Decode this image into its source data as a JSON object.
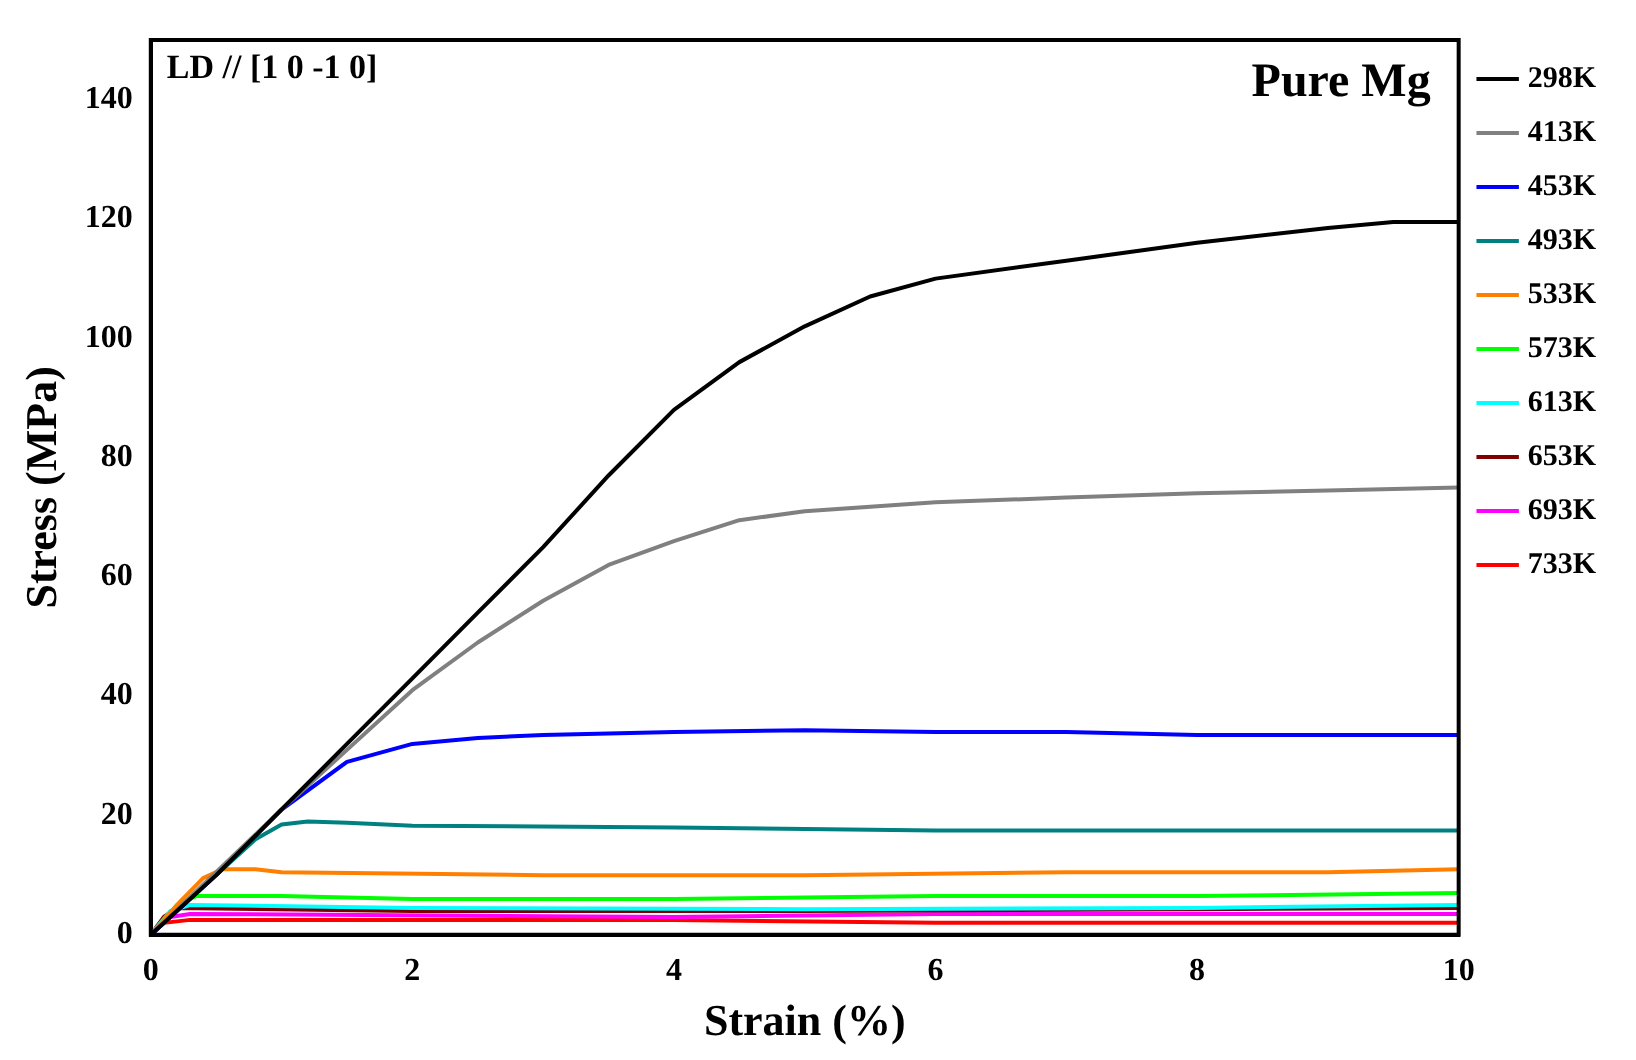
{
  "chart_data": {
    "type": "line",
    "xlabel": "Strain (%)",
    "ylabel": "Stress (MPa)",
    "xlim": [
      0,
      10
    ],
    "ylim": [
      0,
      150
    ],
    "xticks": [
      0,
      2,
      4,
      6,
      8,
      10
    ],
    "yticks": [
      0,
      20,
      40,
      60,
      80,
      100,
      120,
      140
    ],
    "grid": false,
    "legend": "right",
    "marker": "none",
    "line_style": "solid",
    "annotations": [
      "LD // [1 0 -1 0]",
      "Pure Mg"
    ],
    "series": [
      {
        "name": "298K",
        "color": "#000000",
        "x": [
          0,
          0.5,
          1,
          1.5,
          2,
          2.5,
          3,
          3.5,
          4,
          4.5,
          5,
          5.5,
          6,
          7,
          8,
          9,
          9.5,
          10
        ],
        "values": [
          0,
          10,
          21,
          32,
          43,
          54,
          65,
          77,
          88,
          96,
          102,
          107,
          110,
          113,
          116,
          118.5,
          119.5,
          119.5
        ]
      },
      {
        "name": "413K",
        "color": "#808080",
        "x": [
          0,
          1,
          1.5,
          2,
          2.5,
          3,
          3.5,
          4,
          4.5,
          5,
          6,
          7,
          8,
          9,
          10
        ],
        "values": [
          0,
          21,
          31,
          41,
          49,
          56,
          62,
          66,
          69.5,
          71,
          72.5,
          73.3,
          74,
          74.5,
          75
        ]
      },
      {
        "name": "453K",
        "color": "#0000ff",
        "x": [
          0,
          0.5,
          1,
          1.5,
          2,
          2.5,
          3,
          4,
          5,
          6,
          7,
          8,
          9,
          10
        ],
        "values": [
          0,
          10,
          21,
          29,
          32,
          33,
          33.5,
          34,
          34.3,
          34,
          34,
          33.5,
          33.5,
          33.5
        ]
      },
      {
        "name": "493K",
        "color": "#008080",
        "x": [
          0,
          0.5,
          0.8,
          1,
          1.2,
          1.5,
          2,
          4,
          6,
          8,
          10
        ],
        "values": [
          0,
          10,
          16,
          18.5,
          19,
          18.8,
          18.3,
          18,
          17.5,
          17.5,
          17.5
        ]
      },
      {
        "name": "533K",
        "color": "#ff8000",
        "x": [
          0,
          0.2,
          0.4,
          0.55,
          0.8,
          1,
          3,
          5,
          7,
          9,
          10
        ],
        "values": [
          0,
          5,
          9.5,
          11,
          11,
          10.5,
          10,
          10,
          10.5,
          10.5,
          11
        ]
      },
      {
        "name": "573K",
        "color": "#00ff00",
        "x": [
          0,
          0.2,
          0.35,
          1,
          2,
          4,
          6,
          8,
          10
        ],
        "values": [
          0,
          5,
          6.5,
          6.5,
          6,
          6,
          6.5,
          6.5,
          7
        ]
      },
      {
        "name": "613K",
        "color": "#00ffff",
        "x": [
          0,
          0.15,
          0.3,
          2,
          5,
          8,
          10
        ],
        "values": [
          0,
          4,
          5,
          4.5,
          4.3,
          4.5,
          5
        ]
      },
      {
        "name": "653K",
        "color": "#800000",
        "x": [
          0,
          0.1,
          0.2,
          2,
          5,
          8,
          10
        ],
        "values": [
          0,
          3,
          4.5,
          4,
          4,
          4.3,
          4.5
        ]
      },
      {
        "name": "693K",
        "color": "#ff00ff",
        "x": [
          0,
          0.15,
          0.3,
          4,
          6,
          8,
          10
        ],
        "values": [
          0,
          3,
          3.5,
          3,
          3.5,
          3.5,
          3.5
        ]
      },
      {
        "name": "733K",
        "color": "#ff0000",
        "x": [
          0,
          0.1,
          0.3,
          4,
          6,
          8,
          10
        ],
        "values": [
          0,
          2,
          2.5,
          2.5,
          2,
          2,
          2
        ]
      }
    ]
  }
}
